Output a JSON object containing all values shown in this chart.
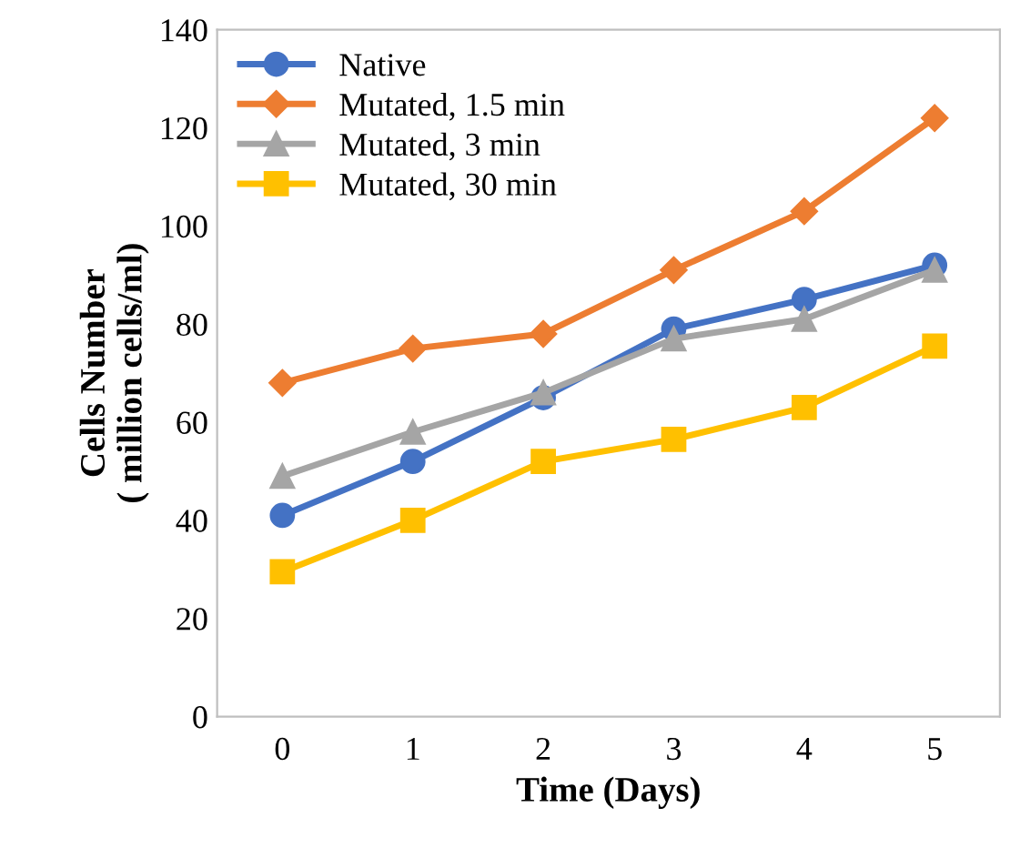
{
  "chart_data": {
    "type": "line",
    "xlabel": "Time (Days)",
    "ylabel": "Cells Number\n( million cells/ml)",
    "categories": [
      "0",
      "1",
      "2",
      "3",
      "4",
      "5"
    ],
    "series": [
      {
        "name": "Native",
        "color": "#4472c4",
        "marker": "circle",
        "values": [
          41,
          52,
          65,
          79,
          85,
          92
        ]
      },
      {
        "name": "Mutated, 1.5 min",
        "color": "#ed7d31",
        "marker": "diamond",
        "values": [
          68,
          75,
          78,
          91,
          103,
          122
        ]
      },
      {
        "name": "Mutated, 3 min",
        "color": "#a5a5a5",
        "marker": "triangle",
        "values": [
          49,
          58,
          66,
          77,
          81,
          91
        ]
      },
      {
        "name": "Mutated, 30 min",
        "color": "#ffc000",
        "marker": "square",
        "values": [
          29.5,
          40,
          52,
          56.5,
          63,
          75.5
        ]
      }
    ],
    "ylim": [
      0,
      140
    ],
    "yticks": [
      0,
      20,
      40,
      60,
      80,
      100,
      120,
      140
    ],
    "grid": false,
    "legend": "top left",
    "line_style": "solid"
  }
}
